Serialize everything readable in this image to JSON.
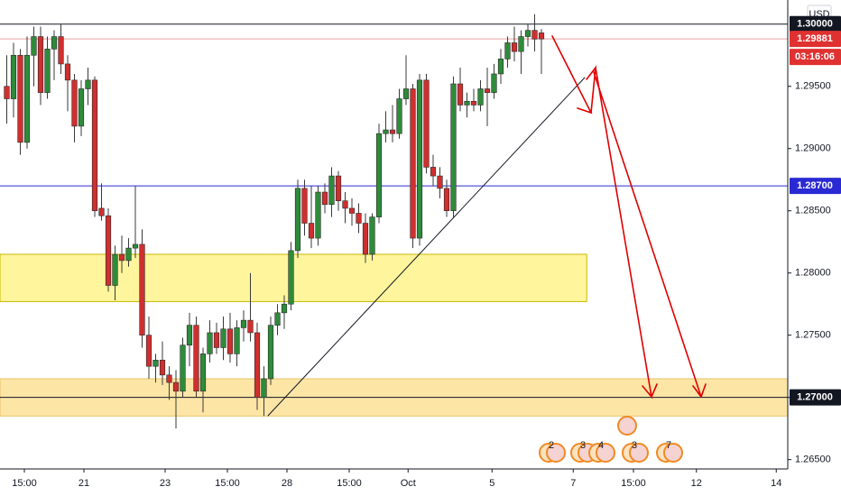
{
  "chart_data": {
    "type": "candlestick",
    "currency": "USD",
    "up_color": "#2e8b3a",
    "down_color": "#cf2f2f",
    "wick_color": "#3a3a3a",
    "xlim": [
      0,
      116.4
    ],
    "ylim": [
      1.26425,
      1.30194
    ],
    "x": [
      1,
      2,
      3,
      4,
      5,
      6,
      7,
      8,
      9,
      10,
      11,
      12,
      13,
      14,
      15,
      16,
      17,
      18,
      19,
      20,
      21,
      22,
      23,
      24,
      25,
      26,
      27,
      28,
      29,
      30,
      31,
      32,
      33,
      34,
      35,
      36,
      37,
      38,
      39,
      40,
      41,
      42,
      43,
      44,
      45,
      46,
      47,
      48,
      49,
      50,
      51,
      52,
      53,
      54,
      55,
      56,
      57,
      58,
      59,
      60,
      61,
      62,
      63,
      64,
      65,
      66,
      67,
      68,
      69,
      70,
      71,
      72,
      73,
      74,
      75,
      76,
      77,
      78,
      79,
      80
    ],
    "open": [
      1.295,
      1.294,
      1.2975,
      1.2905,
      1.2975,
      1.299,
      1.2945,
      1.298,
      1.299,
      1.2968,
      1.2955,
      1.2918,
      1.2948,
      1.2955,
      1.2852,
      1.2846,
      1.279,
      1.2815,
      1.281,
      1.282,
      1.2823,
      1.275,
      1.2725,
      1.273,
      1.2718,
      1.2712,
      1.2705,
      1.2742,
      1.2758,
      1.2705,
      1.2735,
      1.2752,
      1.274,
      1.2755,
      1.2735,
      1.2756,
      1.2762,
      1.2752,
      1.27,
      1.2715,
      1.2758,
      1.2768,
      1.2775,
      1.2818,
      1.2868,
      1.284,
      1.2828,
      1.2865,
      1.2855,
      1.2878,
      1.2858,
      1.2852,
      1.2848,
      1.284,
      1.2815,
      1.2845,
      1.2912,
      1.2915,
      1.2912,
      1.294,
      1.2948,
      1.2828,
      1.2955,
      1.2885,
      1.2878,
      1.2868,
      1.285,
      1.2952,
      1.2935,
      1.2938,
      1.2935,
      1.2948,
      1.2945,
      1.296,
      1.2972,
      1.2985,
      1.2978,
      1.299,
      1.2995,
      1.2993
    ],
    "high": [
      1.2975,
      1.2985,
      1.298,
      1.299,
      1.2998,
      1.2998,
      1.299,
      1.2995,
      1.3,
      1.2975,
      1.296,
      1.2955,
      1.2965,
      1.2958,
      1.2872,
      1.2852,
      1.2822,
      1.283,
      1.2828,
      1.287,
      1.2835,
      1.2765,
      1.2735,
      1.2745,
      1.2725,
      1.2722,
      1.2748,
      1.2768,
      1.2765,
      1.274,
      1.2762,
      1.276,
      1.2765,
      1.2768,
      1.2762,
      1.277,
      1.28,
      1.276,
      1.2725,
      1.2765,
      1.2775,
      1.2782,
      1.2825,
      1.2875,
      1.2875,
      1.287,
      1.287,
      1.2872,
      1.2885,
      1.2882,
      1.2865,
      1.286,
      1.2856,
      1.2848,
      1.2848,
      1.292,
      1.293,
      1.2935,
      1.2948,
      1.2975,
      1.2952,
      1.296,
      1.296,
      1.2895,
      1.2885,
      1.2875,
      1.2958,
      1.2965,
      1.2945,
      1.2948,
      1.2955,
      1.2965,
      1.2968,
      1.298,
      1.299,
      1.2998,
      1.2995,
      1.3,
      1.3008,
      1.2996
    ],
    "low": [
      1.292,
      1.2925,
      1.2895,
      1.29,
      1.295,
      1.2935,
      1.294,
      1.2955,
      1.296,
      1.293,
      1.2905,
      1.291,
      1.2935,
      1.2845,
      1.2842,
      1.2785,
      1.2778,
      1.28,
      1.2805,
      1.2812,
      1.274,
      1.2715,
      1.2712,
      1.271,
      1.2698,
      1.2675,
      1.27,
      1.2725,
      1.27,
      1.2688,
      1.2728,
      1.2735,
      1.273,
      1.2728,
      1.2725,
      1.2745,
      1.2745,
      1.269,
      1.2685,
      1.271,
      1.275,
      1.2755,
      1.277,
      1.2812,
      1.283,
      1.282,
      1.2822,
      1.2848,
      1.2845,
      1.285,
      1.284,
      1.2838,
      1.2832,
      1.2808,
      1.281,
      1.284,
      1.2905,
      1.2905,
      1.2908,
      1.2935,
      1.282,
      1.2822,
      1.288,
      1.287,
      1.286,
      1.2845,
      1.2845,
      1.293,
      1.2925,
      1.293,
      1.293,
      1.2918,
      1.294,
      1.2952,
      1.2965,
      1.297,
      1.296,
      1.2982,
      1.2978,
      1.296
    ],
    "close": [
      1.294,
      1.2975,
      1.2905,
      1.2975,
      1.299,
      1.2945,
      1.298,
      1.299,
      1.2968,
      1.2955,
      1.2918,
      1.2948,
      1.2955,
      1.285,
      1.2846,
      1.279,
      1.2815,
      1.281,
      1.282,
      1.2823,
      1.275,
      1.2725,
      1.273,
      1.2718,
      1.2712,
      1.2705,
      1.2742,
      1.2758,
      1.2705,
      1.2735,
      1.2752,
      1.274,
      1.2755,
      1.2735,
      1.2756,
      1.2762,
      1.2752,
      1.27,
      1.2715,
      1.2758,
      1.2768,
      1.2775,
      1.2818,
      1.2868,
      1.284,
      1.2828,
      1.2865,
      1.2855,
      1.2878,
      1.2858,
      1.2852,
      1.2848,
      1.284,
      1.2815,
      1.2845,
      1.2912,
      1.2915,
      1.2912,
      1.294,
      1.2948,
      1.2828,
      1.2955,
      1.2885,
      1.2878,
      1.2868,
      1.285,
      1.2952,
      1.2935,
      1.2938,
      1.2935,
      1.2948,
      1.2945,
      1.296,
      1.2972,
      1.2985,
      1.2978,
      1.299,
      1.2995,
      1.2988,
      1.29881
    ],
    "yticks": [
      {
        "value": 1.295,
        "label": "1.29500"
      },
      {
        "value": 1.29,
        "label": "1.29000"
      },
      {
        "value": 1.285,
        "label": "1.28500"
      },
      {
        "value": 1.28,
        "label": "1.28000"
      },
      {
        "value": 1.275,
        "label": "1.27500"
      },
      {
        "value": 1.27,
        "label": "1.27000"
      },
      {
        "value": 1.265,
        "label": "1.26500"
      }
    ],
    "xticks": [
      {
        "value": 3.6,
        "label": "15:00"
      },
      {
        "value": 12.4,
        "label": "21"
      },
      {
        "value": 24.4,
        "label": "23"
      },
      {
        "value": 33.6,
        "label": "15:00"
      },
      {
        "value": 42.4,
        "label": "28"
      },
      {
        "value": 51.6,
        "label": "15:00"
      },
      {
        "value": 60.3,
        "label": "Oct"
      },
      {
        "value": 72.7,
        "label": "5"
      },
      {
        "value": 84.7,
        "label": "7"
      },
      {
        "value": 93.6,
        "label": "15:00"
      },
      {
        "value": 102.9,
        "label": "12"
      },
      {
        "value": 114.7,
        "label": "14"
      }
    ],
    "hlines": [
      {
        "value": 1.3,
        "label": "1.30000",
        "color": "#131722"
      },
      {
        "value": 1.29881,
        "label": "1.29881",
        "color": "#e8a0a0",
        "label_color": "#e03131"
      },
      {
        "value": 1.287,
        "label": "1.28700",
        "color": "#2a2ad4"
      },
      {
        "value": 1.27,
        "label": "1.27000",
        "color": "#131722"
      }
    ],
    "countdown": "03:16:06",
    "zones": [
      {
        "from": 1.2777,
        "to": 1.2815,
        "end": 86.7,
        "color": "#fff59d",
        "border": "#c9b800"
      },
      {
        "from": 1.2685,
        "to": 1.2715,
        "color": "#fde5a6",
        "border": "#e8c46a"
      }
    ],
    "events": [
      "2",
      "3",
      "4",
      "3",
      "7"
    ]
  }
}
